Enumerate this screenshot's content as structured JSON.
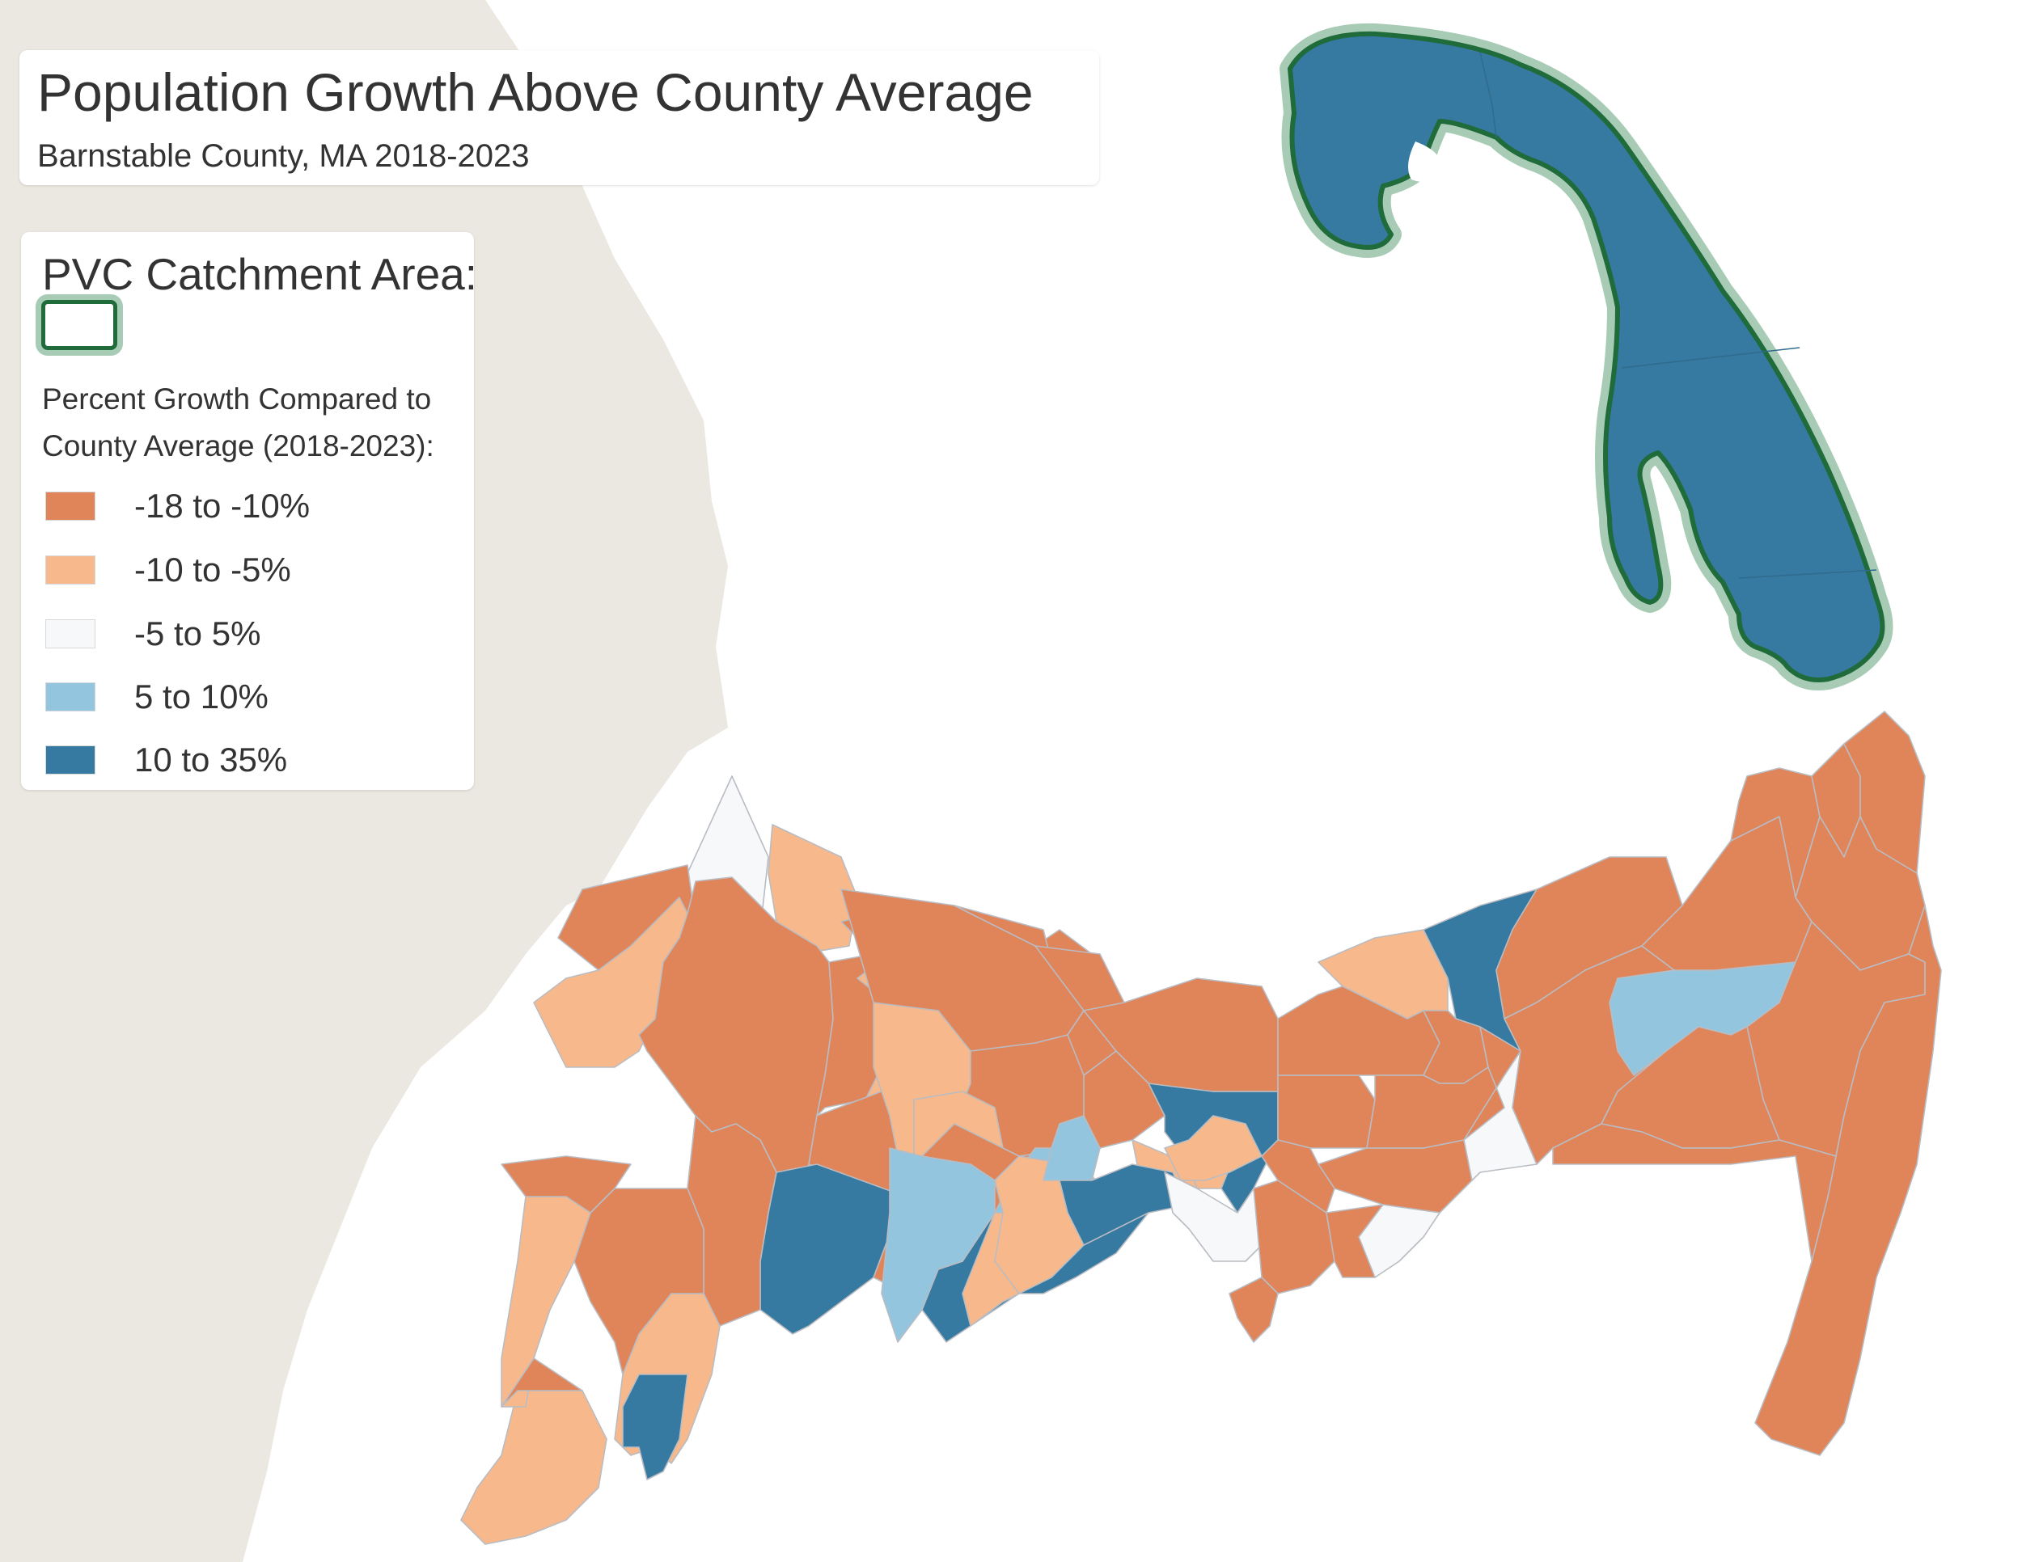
{
  "map": {
    "title": "Population Growth Above County Average",
    "subtitle": "Barnstable County, MA 2018-2023",
    "legend": {
      "catchment_label": "PVC Catchment Area:",
      "growth_label": "Percent Growth Compared to County Average (2018-2023):",
      "classes": [
        {
          "label": "-18 to -10%",
          "color": "#e0845a"
        },
        {
          "label": "-10 to -5%",
          "color": "#f7b98b"
        },
        {
          "label": "-5 to 5%",
          "color": "#f7f8fa"
        },
        {
          "label": "5 to 10%",
          "color": "#94c5df"
        },
        {
          "label": "10 to 35%",
          "color": "#3679a1"
        }
      ]
    },
    "colors": {
      "land_background": "#ebe7e1",
      "water": "#ffffff",
      "tract_border": "#b9bcc2",
      "catchment_outline": "#1f6b3a",
      "catchment_halo": "#a8cbb6"
    }
  }
}
